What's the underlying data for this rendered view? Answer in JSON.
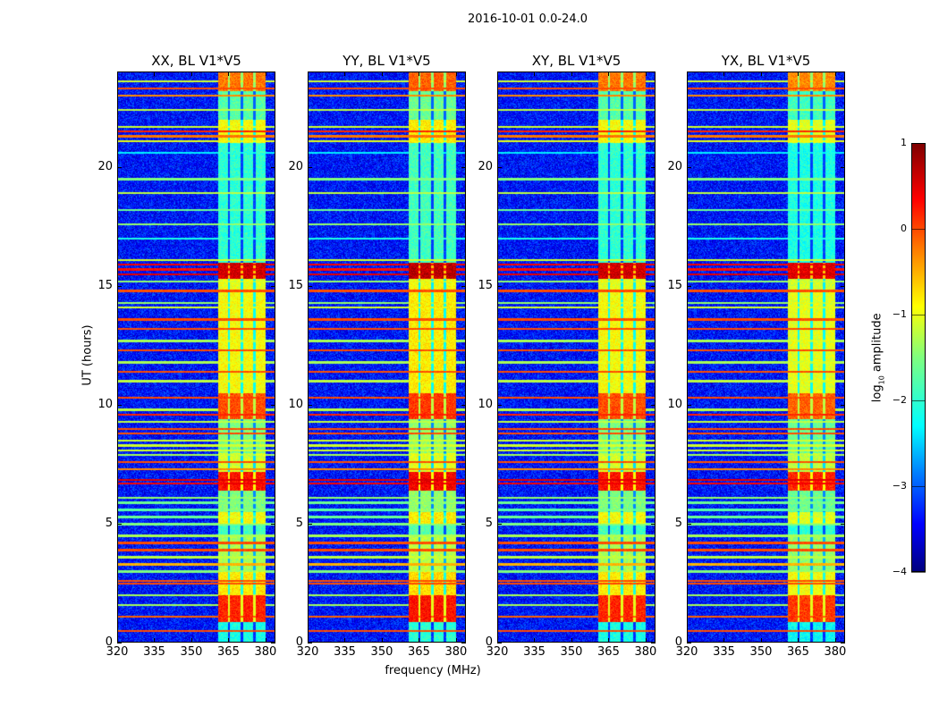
{
  "suptitle": "2016-10-01 0.0-24.0",
  "ylabel": "UT (hours)",
  "xlabel": "frequency (MHz)",
  "colorbar": {
    "label_prefix": "log",
    "label_sub": "10",
    "label_suffix": " amplitude",
    "ticks": [
      "1",
      "0",
      "−1",
      "−2",
      "−3",
      "−4"
    ],
    "range": [
      -4,
      1
    ],
    "colormap": "jet"
  },
  "chart_data": {
    "type": "heatmap",
    "title": "2016-10-01 0.0-24.0",
    "xlabel": "frequency (MHz)",
    "ylabel": "UT (hours)",
    "xlim": [
      320,
      384
    ],
    "ylim": [
      0,
      24
    ],
    "xticks": [
      "320",
      "335",
      "350",
      "365",
      "380"
    ],
    "xtick_values": [
      320,
      335,
      350,
      365,
      380
    ],
    "yticks": [
      "0",
      "5",
      "10",
      "15",
      "20"
    ],
    "ytick_values": [
      0,
      5,
      10,
      15,
      20
    ],
    "colorbar_range": [
      -4,
      1
    ],
    "panels": [
      {
        "title": "XX, BL V1*V5",
        "band_boost": 0.0
      },
      {
        "title": "YY, BL V1*V5",
        "band_boost": 0.1
      },
      {
        "title": "XY, BL V1*V5",
        "band_boost": 0.0
      },
      {
        "title": "YX, BL V1*V5",
        "band_boost": -0.1
      }
    ],
    "background_log_amp": -3.3,
    "signal_band_mhz": [
      [
        360.5,
        364.5
      ],
      [
        365.5,
        369.7
      ],
      [
        370.7,
        374.8
      ],
      [
        375.7,
        380.0
      ]
    ],
    "band_segments_hours_log_amp": [
      [
        0.0,
        0.9,
        -2.0
      ],
      [
        0.9,
        2.0,
        0.2
      ],
      [
        2.0,
        3.0,
        -0.8
      ],
      [
        3.0,
        4.5,
        -1.3
      ],
      [
        4.5,
        5.0,
        -1.8
      ],
      [
        5.0,
        5.5,
        -0.9
      ],
      [
        5.5,
        6.4,
        -1.5
      ],
      [
        6.4,
        7.2,
        0.3
      ],
      [
        7.2,
        8.0,
        -1.1
      ],
      [
        8.0,
        9.4,
        -1.5
      ],
      [
        9.4,
        10.5,
        0.0
      ],
      [
        10.5,
        14.9,
        -0.9
      ],
      [
        14.9,
        15.3,
        -1.0
      ],
      [
        15.3,
        16.0,
        0.6
      ],
      [
        16.0,
        21.0,
        -1.9
      ],
      [
        21.0,
        22.0,
        -0.9
      ],
      [
        22.0,
        23.2,
        -1.7
      ],
      [
        23.2,
        24.0,
        -0.2
      ]
    ],
    "rfi_lines_hours_log_amp": [
      [
        0.5,
        0.0
      ],
      [
        1.1,
        -0.1
      ],
      [
        1.6,
        -1.3
      ],
      [
        2.0,
        -1.3
      ],
      [
        2.5,
        0.0
      ],
      [
        2.6,
        0.0
      ],
      [
        3.0,
        -1.5
      ],
      [
        3.3,
        -0.5
      ],
      [
        3.6,
        -1.2
      ],
      [
        3.9,
        0.0
      ],
      [
        4.2,
        0.0
      ],
      [
        4.5,
        -1.3
      ],
      [
        5.0,
        -1.5
      ],
      [
        5.3,
        -1.6
      ],
      [
        5.6,
        -1.7
      ],
      [
        5.9,
        -1.6
      ],
      [
        6.1,
        -1.4
      ],
      [
        6.7,
        0.4
      ],
      [
        6.85,
        0.5
      ],
      [
        7.3,
        -0.3
      ],
      [
        7.6,
        0.0
      ],
      [
        7.9,
        -1.3
      ],
      [
        8.1,
        -1.1
      ],
      [
        8.3,
        -1.1
      ],
      [
        8.5,
        -1.1
      ],
      [
        8.8,
        0.0
      ],
      [
        9.0,
        0.0
      ],
      [
        9.3,
        -1.2
      ],
      [
        9.6,
        0.2
      ],
      [
        9.8,
        -1.2
      ],
      [
        10.3,
        0.0
      ],
      [
        11.0,
        -1.2
      ],
      [
        11.4,
        0.0
      ],
      [
        11.8,
        -1.3
      ],
      [
        12.3,
        0.0
      ],
      [
        12.7,
        -1.3
      ],
      [
        13.2,
        0.0
      ],
      [
        13.6,
        0.0
      ],
      [
        14.1,
        -1.1
      ],
      [
        14.3,
        -1.4
      ],
      [
        14.8,
        0.0
      ],
      [
        15.2,
        -1.4
      ],
      [
        15.5,
        0.5
      ],
      [
        15.7,
        0.3
      ],
      [
        15.9,
        0.4
      ],
      [
        16.1,
        -1.1
      ],
      [
        17.0,
        -2.0
      ],
      [
        17.6,
        -1.4
      ],
      [
        18.2,
        -1.6
      ],
      [
        18.9,
        -1.2
      ],
      [
        19.5,
        -1.5
      ],
      [
        20.6,
        -2.2
      ],
      [
        21.1,
        -1.0
      ],
      [
        21.3,
        -0.2
      ],
      [
        21.5,
        0.2
      ],
      [
        21.7,
        -1.1
      ],
      [
        22.4,
        -1.2
      ],
      [
        23.0,
        -0.3
      ],
      [
        23.3,
        0.0
      ],
      [
        23.6,
        -1.1
      ]
    ]
  }
}
